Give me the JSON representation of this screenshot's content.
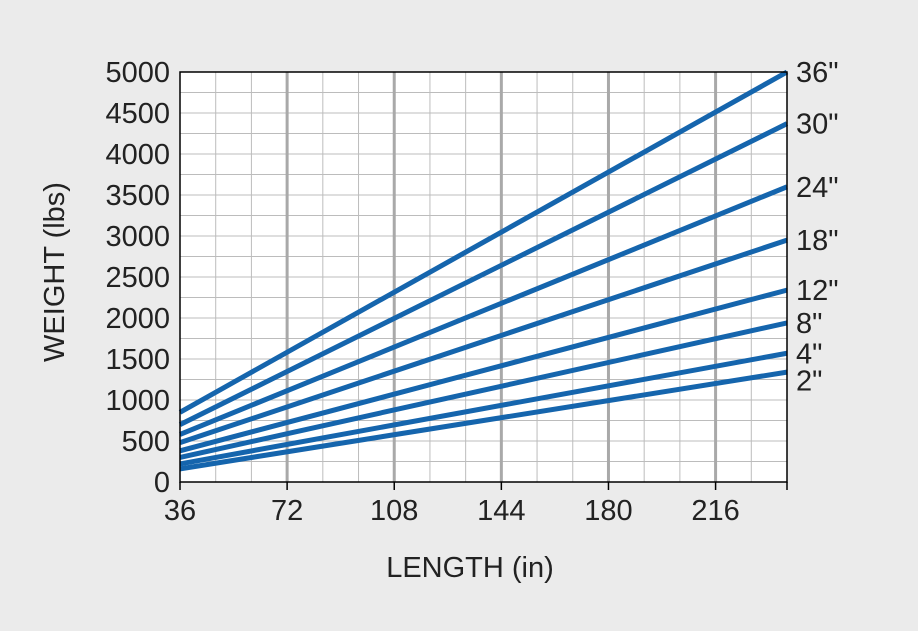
{
  "chart_data": {
    "type": "line",
    "title": "",
    "xlabel": "LENGTH (in)",
    "ylabel": "WEIGHT (lbs)",
    "xlim": [
      36,
      240
    ],
    "ylim": [
      0,
      5000
    ],
    "x_ticks": [
      36,
      72,
      108,
      144,
      180,
      216
    ],
    "y_ticks": [
      0,
      500,
      1000,
      1500,
      2000,
      2500,
      3000,
      3500,
      4000,
      4500,
      5000
    ],
    "grid": true,
    "series_color": "#1565ad",
    "background": "#ebebeb",
    "plot_background": "#ffffff",
    "grid_color": "#bcbcbc",
    "series": [
      {
        "name": "36\"",
        "x": [
          36,
          240
        ],
        "values": [
          850,
          5000
        ]
      },
      {
        "name": "30\"",
        "x": [
          36,
          240
        ],
        "values": [
          700,
          4370
        ]
      },
      {
        "name": "24\"",
        "x": [
          36,
          240
        ],
        "values": [
          580,
          3600
        ]
      },
      {
        "name": "18\"",
        "x": [
          36,
          240
        ],
        "values": [
          480,
          2950
        ]
      },
      {
        "name": "12\"",
        "x": [
          36,
          240
        ],
        "values": [
          380,
          2340
        ]
      },
      {
        "name": "8\"",
        "x": [
          36,
          240
        ],
        "values": [
          300,
          1940
        ]
      },
      {
        "name": "4\"",
        "x": [
          36,
          240
        ],
        "values": [
          220,
          1570
        ]
      },
      {
        "name": "2\"",
        "x": [
          36,
          240
        ],
        "values": [
          160,
          1340
        ]
      }
    ]
  }
}
